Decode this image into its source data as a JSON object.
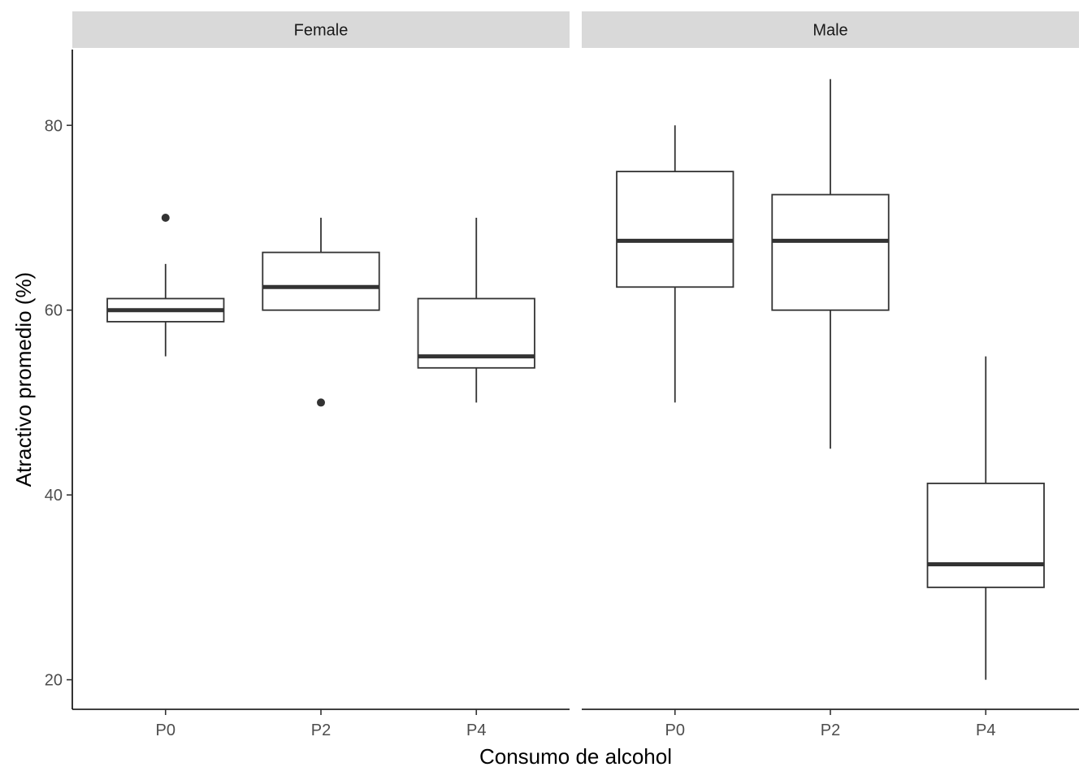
{
  "chart_data": {
    "type": "boxplot",
    "facets": [
      "Female",
      "Male"
    ],
    "categories": [
      "P0",
      "P2",
      "P4"
    ],
    "xlabel": "Consumo de alcohol",
    "ylabel": "Atractivo promedio (%)",
    "ylim": [
      16.8,
      88.2
    ],
    "yticks": [
      20,
      40,
      60,
      80
    ],
    "grid": false,
    "legend": "none",
    "panels": [
      {
        "facet": "Female",
        "boxes": [
          {
            "category": "P0",
            "lower": 55,
            "q1": 58.75,
            "median": 60,
            "q3": 61.25,
            "upper": 65,
            "outliers": [
              70
            ]
          },
          {
            "category": "P2",
            "lower": 60,
            "q1": 60,
            "median": 62.5,
            "q3": 66.25,
            "upper": 70,
            "outliers": [
              50
            ]
          },
          {
            "category": "P4",
            "lower": 50,
            "q1": 53.75,
            "median": 55,
            "q3": 61.25,
            "upper": 70,
            "outliers": []
          }
        ]
      },
      {
        "facet": "Male",
        "boxes": [
          {
            "category": "P0",
            "lower": 50,
            "q1": 62.5,
            "median": 67.5,
            "q3": 75,
            "upper": 80,
            "outliers": []
          },
          {
            "category": "P2",
            "lower": 45,
            "q1": 60,
            "median": 67.5,
            "q3": 72.5,
            "upper": 85,
            "outliers": []
          },
          {
            "category": "P4",
            "lower": 20,
            "q1": 30,
            "median": 32.5,
            "q3": 41.25,
            "upper": 55,
            "outliers": []
          }
        ]
      }
    ]
  }
}
